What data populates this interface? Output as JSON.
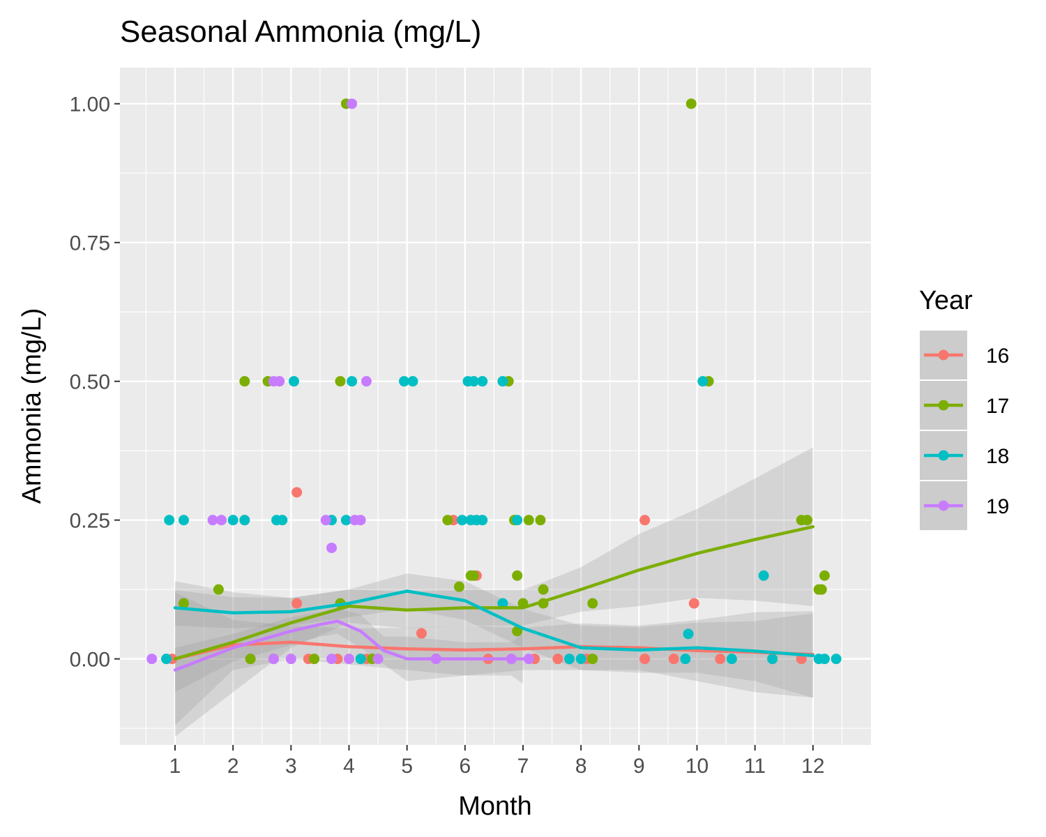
{
  "chart_data": {
    "type": "scatter",
    "title": "Seasonal Ammonia (mg/L)",
    "xlabel": "Month",
    "ylabel": "Ammonia (mg/L)",
    "xlim": [
      0.05,
      13.0
    ],
    "ylim": [
      -0.155,
      1.065
    ],
    "x_ticks": [
      1,
      2,
      3,
      4,
      5,
      6,
      7,
      8,
      9,
      10,
      11,
      12
    ],
    "x_tick_labels": [
      "1",
      "2",
      "3",
      "4",
      "5",
      "6",
      "7",
      "8",
      "9",
      "10",
      "11",
      "12"
    ],
    "y_ticks": [
      0.0,
      0.25,
      0.5,
      0.75,
      1.0
    ],
    "y_tick_labels": [
      "0.00",
      "0.25",
      "0.50",
      "0.75",
      "1.00"
    ],
    "grid": true,
    "legend": {
      "title": "Year",
      "position": "right"
    },
    "series": [
      {
        "name": "16",
        "color": "#F8766D",
        "points": [
          [
            0.95,
            0
          ],
          [
            2.2,
            0.25
          ],
          [
            2.3,
            0
          ],
          [
            3.1,
            0.1
          ],
          [
            3.1,
            0.3
          ],
          [
            3.3,
            0
          ],
          [
            3.8,
            0
          ],
          [
            4.3,
            0
          ],
          [
            5.25,
            0.046
          ],
          [
            5.5,
            0
          ],
          [
            5.8,
            0.25
          ],
          [
            6.2,
            0.15
          ],
          [
            6.4,
            0
          ],
          [
            6.8,
            0
          ],
          [
            7.2,
            0
          ],
          [
            7.6,
            0
          ],
          [
            8.1,
            0
          ],
          [
            9.1,
            0.25
          ],
          [
            9.1,
            0
          ],
          [
            9.6,
            0
          ],
          [
            9.95,
            0.1
          ],
          [
            10.4,
            0
          ],
          [
            11.3,
            0
          ],
          [
            11.8,
            0
          ]
        ],
        "trend": [
          [
            1,
            0.0
          ],
          [
            2,
            0.025
          ],
          [
            3,
            0.03
          ],
          [
            4,
            0.022
          ],
          [
            5,
            0.018
          ],
          [
            6,
            0.016
          ],
          [
            7,
            0.018
          ],
          [
            8,
            0.022
          ],
          [
            9,
            0.02
          ],
          [
            10,
            0.015
          ],
          [
            11,
            0.012
          ],
          [
            12,
            0.008
          ]
        ],
        "band_lower": [
          [
            1,
            -0.12
          ],
          [
            2,
            -0.02
          ],
          [
            3,
            0.0
          ],
          [
            4,
            -0.01
          ],
          [
            5,
            -0.02
          ],
          [
            6,
            -0.03
          ],
          [
            7,
            -0.02
          ],
          [
            8,
            -0.02
          ],
          [
            9,
            -0.02
          ],
          [
            10,
            -0.04
          ],
          [
            11,
            -0.06
          ],
          [
            12,
            -0.07
          ]
        ],
        "band_upper": [
          [
            1,
            0.12
          ],
          [
            2,
            0.07
          ],
          [
            3,
            0.06
          ],
          [
            4,
            0.055
          ],
          [
            5,
            0.056
          ],
          [
            6,
            0.06
          ],
          [
            7,
            0.056
          ],
          [
            8,
            0.064
          ],
          [
            9,
            0.06
          ],
          [
            10,
            0.07
          ],
          [
            11,
            0.084
          ],
          [
            12,
            0.086
          ]
        ]
      },
      {
        "name": "17",
        "color": "#7CAE00",
        "points": [
          [
            1.15,
            0.1
          ],
          [
            1.75,
            0.125
          ],
          [
            2.2,
            0.5
          ],
          [
            2.3,
            0
          ],
          [
            2.6,
            0.5
          ],
          [
            2.7,
            0
          ],
          [
            3.4,
            0
          ],
          [
            3.85,
            0.5
          ],
          [
            3.85,
            0.1
          ],
          [
            3.95,
            1.0
          ],
          [
            4.4,
            0
          ],
          [
            5.7,
            0.25
          ],
          [
            5.9,
            0.13
          ],
          [
            6.1,
            0.15
          ],
          [
            6.15,
            0.15
          ],
          [
            6.75,
            0.5
          ],
          [
            6.85,
            0.25
          ],
          [
            6.9,
            0.15
          ],
          [
            6.9,
            0.05
          ],
          [
            7.0,
            0.1
          ],
          [
            7.1,
            0.25
          ],
          [
            7.3,
            0.25
          ],
          [
            7.35,
            0.125
          ],
          [
            7.35,
            0.1
          ],
          [
            8.2,
            0.1
          ],
          [
            8.2,
            0
          ],
          [
            9.9,
            1.0
          ],
          [
            10.2,
            0.5
          ],
          [
            11.8,
            0.25
          ],
          [
            11.9,
            0.25
          ],
          [
            12.1,
            0.125
          ],
          [
            12.15,
            0.125
          ],
          [
            12.2,
            0.15
          ]
        ],
        "trend": [
          [
            1,
            0.0
          ],
          [
            2,
            0.03
          ],
          [
            3,
            0.065
          ],
          [
            4,
            0.095
          ],
          [
            5,
            0.088
          ],
          [
            6,
            0.092
          ],
          [
            7,
            0.092
          ],
          [
            8,
            0.125
          ],
          [
            9,
            0.16
          ],
          [
            10,
            0.19
          ],
          [
            11,
            0.215
          ],
          [
            12,
            0.238
          ]
        ],
        "band_lower": [
          [
            1,
            -0.14
          ],
          [
            2,
            -0.06
          ],
          [
            3,
            0.02
          ],
          [
            4,
            0.065
          ],
          [
            5,
            0.055
          ],
          [
            6,
            0.06
          ],
          [
            7,
            0.06
          ],
          [
            8,
            0.085
          ],
          [
            9,
            0.095
          ],
          [
            10,
            0.11
          ],
          [
            11,
            0.105
          ],
          [
            12,
            0.095
          ]
        ],
        "band_upper": [
          [
            1,
            0.14
          ],
          [
            2,
            0.12
          ],
          [
            3,
            0.11
          ],
          [
            4,
            0.125
          ],
          [
            5,
            0.121
          ],
          [
            6,
            0.124
          ],
          [
            7,
            0.124
          ],
          [
            8,
            0.165
          ],
          [
            9,
            0.225
          ],
          [
            10,
            0.27
          ],
          [
            11,
            0.325
          ],
          [
            12,
            0.381
          ]
        ]
      },
      {
        "name": "18",
        "color": "#00BFC4",
        "points": [
          [
            0.85,
            0
          ],
          [
            0.9,
            0.25
          ],
          [
            1.15,
            0.25
          ],
          [
            2.0,
            0.25
          ],
          [
            2.2,
            0.25
          ],
          [
            2.75,
            0.25
          ],
          [
            2.85,
            0.25
          ],
          [
            3.05,
            0.5
          ],
          [
            3.7,
            0.25
          ],
          [
            3.95,
            0.25
          ],
          [
            4.05,
            0.5
          ],
          [
            4.2,
            0
          ],
          [
            4.95,
            0.5
          ],
          [
            5.1,
            0.5
          ],
          [
            5.95,
            0.25
          ],
          [
            6.05,
            0.5
          ],
          [
            6.15,
            0.5
          ],
          [
            6.3,
            0.5
          ],
          [
            6.65,
            0.5
          ],
          [
            6.65,
            0.1
          ],
          [
            6.9,
            0.25
          ],
          [
            6.2,
            0.25
          ],
          [
            6.3,
            0.25
          ],
          [
            6.1,
            0.25
          ],
          [
            7.8,
            0
          ],
          [
            8.0,
            0
          ],
          [
            9.8,
            0
          ],
          [
            9.85,
            0.045
          ],
          [
            10.1,
            0.5
          ],
          [
            10.6,
            0
          ],
          [
            11.15,
            0.15
          ],
          [
            11.3,
            0
          ],
          [
            12.1,
            0
          ],
          [
            12.2,
            0
          ],
          [
            12.4,
            0
          ]
        ],
        "trend": [
          [
            1,
            0.092
          ],
          [
            2,
            0.083
          ],
          [
            3,
            0.085
          ],
          [
            4,
            0.1
          ],
          [
            5,
            0.122
          ],
          [
            6,
            0.105
          ],
          [
            7,
            0.055
          ],
          [
            8,
            0.02
          ],
          [
            9,
            0.016
          ],
          [
            10,
            0.02
          ],
          [
            11,
            0.014
          ],
          [
            12,
            0.006
          ]
        ],
        "band_lower": [
          [
            1,
            0.06
          ],
          [
            2,
            0.055
          ],
          [
            3,
            0.06
          ],
          [
            4,
            0.075
          ],
          [
            5,
            0.09
          ],
          [
            6,
            0.07
          ],
          [
            7,
            0.02
          ],
          [
            8,
            -0.02
          ],
          [
            9,
            -0.025
          ],
          [
            10,
            -0.025
          ],
          [
            11,
            -0.04
          ],
          [
            12,
            -0.07
          ]
        ],
        "band_upper": [
          [
            1,
            0.124
          ],
          [
            2,
            0.111
          ],
          [
            3,
            0.11
          ],
          [
            4,
            0.125
          ],
          [
            5,
            0.154
          ],
          [
            6,
            0.14
          ],
          [
            7,
            0.09
          ],
          [
            8,
            0.06
          ],
          [
            9,
            0.057
          ],
          [
            10,
            0.065
          ],
          [
            11,
            0.068
          ],
          [
            12,
            0.082
          ]
        ]
      },
      {
        "name": "19",
        "color": "#C77CFF",
        "points": [
          [
            0.6,
            0
          ],
          [
            1.65,
            0.25
          ],
          [
            1.8,
            0.25
          ],
          [
            2.7,
            0.5
          ],
          [
            2.8,
            0.5
          ],
          [
            3.6,
            0.25
          ],
          [
            3.7,
            0.2
          ],
          [
            4.05,
            1.0
          ],
          [
            4.1,
            0.25
          ],
          [
            4.2,
            0.25
          ],
          [
            4.3,
            0.5
          ],
          [
            2.7,
            0
          ],
          [
            3.0,
            0
          ],
          [
            3.7,
            0
          ],
          [
            4.0,
            0
          ],
          [
            4.5,
            0
          ],
          [
            5.5,
            0
          ],
          [
            6.8,
            0
          ],
          [
            7.1,
            0
          ]
        ],
        "trend": [
          [
            1,
            -0.02
          ],
          [
            2,
            0.02
          ],
          [
            3,
            0.05
          ],
          [
            3.5,
            0.062
          ],
          [
            3.8,
            0.068
          ],
          [
            4.2,
            0.05
          ],
          [
            4.6,
            0.015
          ],
          [
            5,
            0.0
          ],
          [
            6,
            0.0
          ],
          [
            6.8,
            0.0
          ],
          [
            7.0,
            0.0
          ]
        ],
        "band_lower": [
          [
            1,
            -0.06
          ],
          [
            2,
            -0.005
          ],
          [
            3,
            0.025
          ],
          [
            3.5,
            0.04
          ],
          [
            3.8,
            0.045
          ],
          [
            4.2,
            0.02
          ],
          [
            4.6,
            -0.01
          ],
          [
            5,
            -0.04
          ],
          [
            6,
            -0.03
          ],
          [
            6.8,
            -0.03
          ],
          [
            7.0,
            -0.045
          ]
        ],
        "band_upper": [
          [
            1,
            0.02
          ],
          [
            2,
            0.045
          ],
          [
            3,
            0.075
          ],
          [
            3.5,
            0.084
          ],
          [
            3.8,
            0.091
          ],
          [
            4.2,
            0.08
          ],
          [
            4.6,
            0.04
          ],
          [
            5,
            0.04
          ],
          [
            6,
            0.03
          ],
          [
            6.8,
            0.03
          ],
          [
            7.0,
            0.045
          ]
        ]
      }
    ]
  }
}
